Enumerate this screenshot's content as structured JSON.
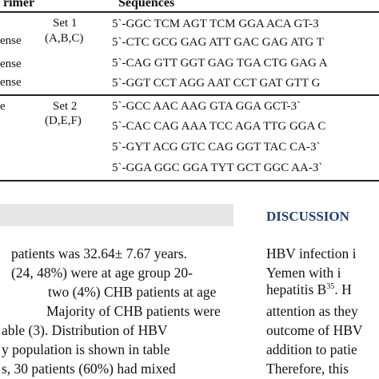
{
  "table": {
    "header": {
      "primer": "rimer",
      "sequences": "Sequences"
    },
    "groups": [
      {
        "set": "Set 1",
        "set_letters": "(A,B,C)",
        "primers": [
          "ense",
          "ense",
          "ense"
        ],
        "sequences": [
          "5`-GGC TCM AGT TCM GGA ACA GT-3",
          "5`-CTC GCG GAG ATT GAC GAG ATG T",
          "5`-CAG GTT GGT GAG TGA CTG GAG A",
          "5`-GGT CCT AGG AAT CCT GAT GTT G"
        ]
      },
      {
        "set": "Set 2",
        "set_letters": "(D,E,F)",
        "primers": [
          "e"
        ],
        "sequences": [
          "5`-GCC AAC AAG GTA GGA GCT-3`",
          "5`-CAC CAG AAA TCC AGA TTG GGA C",
          "5`-GYT ACG GTC CAG GGT TAC CA-3`",
          "5`-GGA GGC GGA TYT GCT GGC AA-3`"
        ]
      }
    ]
  },
  "right_heading": "DISCUSSION",
  "left_paragraph": [
    "patients was 32.64± 7.67 years.",
    "(24, 48%) were at age group 20-",
    "two (4%) CHB patients at age",
    "Majority of CHB patients were",
    "able (3). Distribution of HBV",
    "y population is shown in table",
    "s, 30 patients (60%) had mixed"
  ],
  "right_paragraph": [
    "HBV infection i",
    "Yemen with i",
    {
      "before": "hepatitis B",
      "sup": "35",
      "after": ". H"
    },
    "attention as they",
    "outcome of HBV",
    "addition to patie",
    "Therefore, this"
  ]
}
